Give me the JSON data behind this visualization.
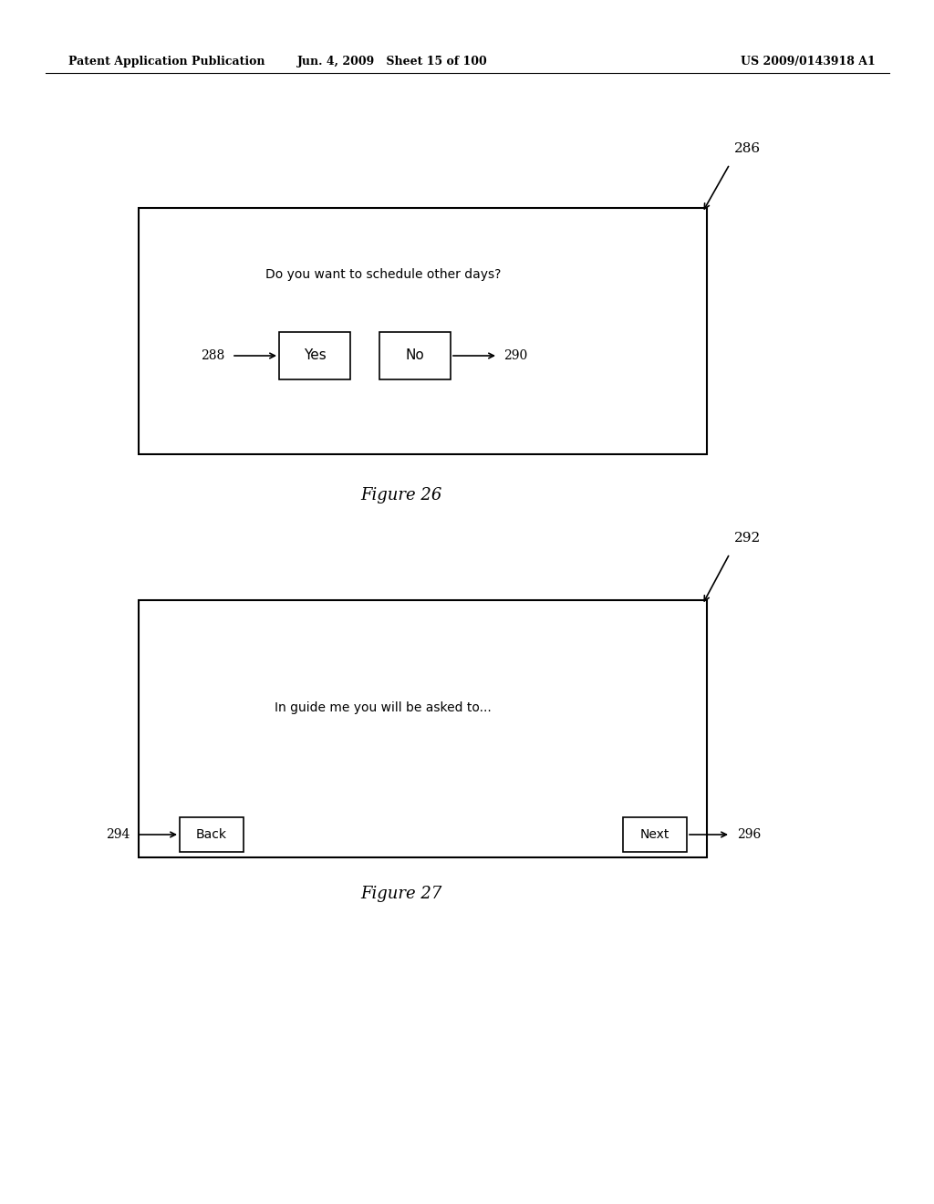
{
  "bg_color": "#ffffff",
  "header_left": "Patent Application Publication",
  "header_mid": "Jun. 4, 2009   Sheet 15 of 100",
  "header_right": "US 2009/0143918 A1",
  "fig26_ref": "286",
  "fig26_label": "Figure 26",
  "fig26_question": "Do you want to schedule other days?",
  "fig26_yes_label": "Yes",
  "fig26_yes_ref": "288",
  "fig26_no_label": "No",
  "fig26_no_ref": "290",
  "fig27_ref": "292",
  "fig27_label": "Figure 27",
  "fig27_text": "In guide me you will be asked to...",
  "fig27_back_label": "Back",
  "fig27_back_ref": "294",
  "fig27_next_label": "Next",
  "fig27_next_ref": "296"
}
